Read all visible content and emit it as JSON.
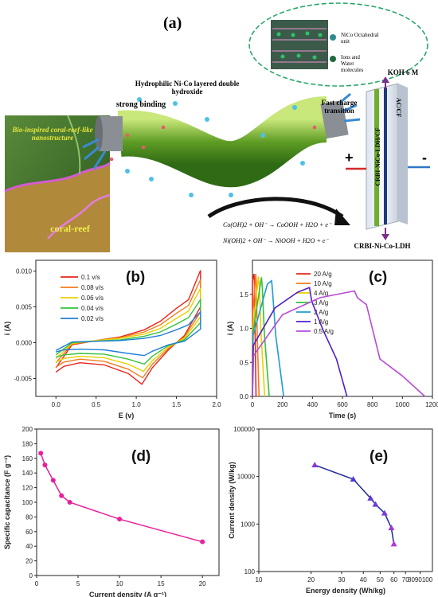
{
  "panel_a": {
    "label": "(a)",
    "inset_legend": [
      "NiCo Octahedral unit",
      "Ions and Water molecules"
    ],
    "hydrophilic_label": "Hydrophilic Ni-Co layered double hydroxide",
    "binding_label": "strong binding",
    "fast_charge_label": "Fast charge transition",
    "coral_title": "Bio-inspired coral-reef-like nanostructure",
    "coral_label": "coral-reef",
    "electrolyte": "KOH 6 M",
    "electrode_pos": "CRBI-NiCo-LDH/CF",
    "electrode_neg": "AC/CF",
    "plus": "+",
    "minus": "-",
    "bottom_label": "CRBI-Ni-Co-LDH",
    "reaction1": "Co(OH)2 + OH⁻ → CoOOH + H2O + e⁻",
    "reaction2": "Ni(OH)2 + OH⁻ → NiOOH + H2O + e⁻",
    "colors": {
      "green": "#6fae2e",
      "dash": "#2aa86a",
      "blue": "#2f78c4",
      "red": "#d42a2a"
    }
  },
  "chart_data": [
    {
      "panel": "(b)",
      "type": "line",
      "xlabel": "E (v)",
      "ylabel": "i (A)",
      "xlim": [
        -0.25,
        2.0
      ],
      "ylim": [
        -0.0075,
        0.0115
      ],
      "xticks": [
        "0.0",
        "0.5",
        "1.0",
        "1.5",
        "2.0"
      ],
      "yticks": [
        "0.010",
        "0.005",
        "0.000",
        "-0.005"
      ],
      "legend_position": "top-left",
      "series": [
        {
          "name": "0.1 v/s",
          "color": "#e8261c",
          "anodic": [
            [
              0,
              -0.0035
            ],
            [
              0.2,
              -0.0003
            ],
            [
              0.5,
              0.0003
            ],
            [
              0.8,
              0.0008
            ],
            [
              1.1,
              0.0018
            ],
            [
              1.3,
              0.003
            ],
            [
              1.5,
              0.0048
            ],
            [
              1.65,
              0.006
            ],
            [
              1.8,
              0.0101
            ]
          ],
          "cathodic": [
            [
              1.8,
              0.005
            ],
            [
              1.6,
              0.001
            ],
            [
              1.4,
              -0.001
            ],
            [
              1.2,
              -0.0035
            ],
            [
              1.07,
              -0.0058
            ],
            [
              0.9,
              -0.0043
            ],
            [
              0.6,
              -0.0031
            ],
            [
              0.3,
              -0.0028
            ],
            [
              0.1,
              -0.0033
            ],
            [
              0,
              -0.0041
            ]
          ]
        },
        {
          "name": "0.08 v/s",
          "color": "#f07c1e",
          "anodic": [
            [
              0,
              -0.0028
            ],
            [
              0.2,
              -0.0002
            ],
            [
              0.5,
              0.0003
            ],
            [
              0.8,
              0.0007
            ],
            [
              1.1,
              0.0015
            ],
            [
              1.3,
              0.0025
            ],
            [
              1.5,
              0.0041
            ],
            [
              1.65,
              0.0052
            ],
            [
              1.8,
              0.0088
            ]
          ],
          "cathodic": [
            [
              1.8,
              0.0043
            ],
            [
              1.6,
              0.0008
            ],
            [
              1.4,
              -0.0008
            ],
            [
              1.2,
              -0.003
            ],
            [
              1.08,
              -0.0049
            ],
            [
              0.9,
              -0.0037
            ],
            [
              0.6,
              -0.0026
            ],
            [
              0.3,
              -0.0023
            ],
            [
              0.1,
              -0.0027
            ],
            [
              0,
              -0.0034
            ]
          ]
        },
        {
          "name": "0.06 v/s",
          "color": "#e8d000",
          "anodic": [
            [
              0,
              -0.0022
            ],
            [
              0.2,
              -0.0001
            ],
            [
              0.5,
              0.0003
            ],
            [
              0.8,
              0.0006
            ],
            [
              1.1,
              0.0012
            ],
            [
              1.3,
              0.002
            ],
            [
              1.5,
              0.0034
            ],
            [
              1.65,
              0.0044
            ],
            [
              1.8,
              0.0076
            ]
          ],
          "cathodic": [
            [
              1.8,
              0.0036
            ],
            [
              1.6,
              0.0006
            ],
            [
              1.4,
              -0.0006
            ],
            [
              1.2,
              -0.0025
            ],
            [
              1.09,
              -0.004
            ],
            [
              0.9,
              -0.003
            ],
            [
              0.6,
              -0.0021
            ],
            [
              0.3,
              -0.0019
            ],
            [
              0.1,
              -0.0022
            ],
            [
              0,
              -0.0027
            ]
          ]
        },
        {
          "name": "0.04 v/s",
          "color": "#33c23a",
          "anodic": [
            [
              0,
              -0.0017
            ],
            [
              0.2,
              0.0
            ],
            [
              0.5,
              0.0002
            ],
            [
              0.8,
              0.0004
            ],
            [
              1.1,
              0.0009
            ],
            [
              1.3,
              0.0015
            ],
            [
              1.5,
              0.0026
            ],
            [
              1.65,
              0.0035
            ],
            [
              1.8,
              0.006
            ]
          ],
          "cathodic": [
            [
              1.8,
              0.0028
            ],
            [
              1.6,
              0.0004
            ],
            [
              1.4,
              -0.0004
            ],
            [
              1.2,
              -0.0019
            ],
            [
              1.1,
              -0.003
            ],
            [
              0.9,
              -0.0023
            ],
            [
              0.6,
              -0.0016
            ],
            [
              0.3,
              -0.0015
            ],
            [
              0.1,
              -0.0017
            ],
            [
              0,
              -0.002
            ]
          ]
        },
        {
          "name": "0.02 v/s",
          "color": "#1f7fd6",
          "anodic": [
            [
              0,
              -0.0011
            ],
            [
              0.2,
              0.0001
            ],
            [
              0.5,
              0.0002
            ],
            [
              0.8,
              0.0003
            ],
            [
              1.1,
              0.0006
            ],
            [
              1.3,
              0.001
            ],
            [
              1.5,
              0.0018
            ],
            [
              1.65,
              0.0025
            ],
            [
              1.8,
              0.0043
            ]
          ],
          "cathodic": [
            [
              1.8,
              0.0019
            ],
            [
              1.6,
              0.0002
            ],
            [
              1.4,
              -0.0003
            ],
            [
              1.2,
              -0.0012
            ],
            [
              1.1,
              -0.0018
            ],
            [
              0.9,
              -0.0015
            ],
            [
              0.6,
              -0.001
            ],
            [
              0.3,
              -0.0009
            ],
            [
              0.1,
              -0.001
            ],
            [
              0,
              -0.0013
            ]
          ]
        }
      ]
    },
    {
      "panel": "(c)",
      "type": "line",
      "xlabel": "Time (s)",
      "ylabel": "i (A)",
      "xlim": [
        0,
        1200
      ],
      "ylim": [
        0,
        2.0
      ],
      "xticks": [
        "0",
        "200",
        "400",
        "600",
        "800",
        "1000",
        "1200"
      ],
      "yticks": [
        "1.5",
        "1.0",
        "0.5",
        "0.0"
      ],
      "legend_position": "top-right",
      "series": [
        {
          "name": "20  A/g",
          "color": "#e8261c",
          "points": [
            [
              0,
              0
            ],
            [
              0,
              1.7
            ],
            [
              10,
              1.8
            ],
            [
              14,
              1.65
            ],
            [
              18,
              0.9
            ],
            [
              24,
              0
            ]
          ]
        },
        {
          "name": "10  A/g",
          "color": "#f07c1e",
          "points": [
            [
              0,
              0
            ],
            [
              2,
              1.2
            ],
            [
              22,
              1.8
            ],
            [
              26,
              1.65
            ],
            [
              32,
              0.9
            ],
            [
              44,
              0
            ]
          ]
        },
        {
          "name": "4    A/g",
          "color": "#e8d000",
          "points": [
            [
              0,
              0
            ],
            [
              3,
              1.0
            ],
            [
              40,
              1.76
            ],
            [
              46,
              1.62
            ],
            [
              58,
              0.9
            ],
            [
              82,
              0
            ]
          ]
        },
        {
          "name": "3    A/g",
          "color": "#33c23a",
          "points": [
            [
              0,
              0
            ],
            [
              4,
              0.95
            ],
            [
              60,
              1.75
            ],
            [
              66,
              1.6
            ],
            [
              80,
              0.9
            ],
            [
              112,
              0
            ]
          ]
        },
        {
          "name": "2    A/g",
          "color": "#1f9bd6",
          "points": [
            [
              0,
              0
            ],
            [
              5,
              0.9
            ],
            [
              100,
              1.65
            ],
            [
              128,
              1.7
            ],
            [
              134,
              1.55
            ],
            [
              155,
              0.9
            ],
            [
              208,
              0
            ]
          ]
        },
        {
          "name": "1    A/g",
          "color": "#5020c8",
          "points": [
            [
              0,
              0
            ],
            [
              6,
              0.75
            ],
            [
              150,
              1.3
            ],
            [
              300,
              1.53
            ],
            [
              380,
              1.6
            ],
            [
              395,
              1.4
            ],
            [
              470,
              0.98
            ],
            [
              560,
              0.55
            ],
            [
              630,
              0
            ]
          ]
        },
        {
          "name": "0.5 A/g",
          "color": "#b84bd6",
          "points": [
            [
              0,
              0
            ],
            [
              8,
              0.6
            ],
            [
              200,
              1.2
            ],
            [
              450,
              1.45
            ],
            [
              680,
              1.55
            ],
            [
              700,
              1.45
            ],
            [
              760,
              1.35
            ],
            [
              850,
              0.55
            ],
            [
              1000,
              0.3
            ],
            [
              1150,
              0
            ]
          ]
        }
      ]
    },
    {
      "panel": "(d)",
      "type": "line",
      "xlabel": "Current density (A g⁻¹)",
      "ylabel": "Specific capacitance (F g⁻¹)",
      "xlim": [
        0,
        22
      ],
      "ylim": [
        0,
        200
      ],
      "xticks": [
        "0",
        "5",
        "10",
        "15",
        "20"
      ],
      "yticks": [
        "200",
        "180",
        "160",
        "140",
        "120",
        "100",
        "80",
        "60",
        "40",
        "20",
        "0"
      ],
      "series": [
        {
          "name": "",
          "color": "#e8209a",
          "x": [
            0.5,
            1,
            2,
            3,
            4,
            10,
            20
          ],
          "values": [
            167,
            151,
            130,
            109,
            100,
            77,
            46
          ]
        }
      ]
    },
    {
      "panel": "(e)",
      "type": "line",
      "xlabel": "Energy density (Wh/kg)",
      "ylabel": "Current density (W/kg)",
      "x_scale": "log",
      "y_scale": "log",
      "xlim": [
        10,
        100
      ],
      "ylim": [
        100,
        100000
      ],
      "xticks": [
        "10",
        "20",
        "30",
        "40",
        "50",
        "60",
        "70",
        "8090100"
      ],
      "yticks": [
        "100000",
        "10000",
        "1000",
        "100"
      ],
      "series": [
        {
          "name": "",
          "color": "#1b2a9c",
          "marker_colors": [
            "#8a3ad6",
            "#4a3ad6",
            "#5f3ad6",
            "#6f3ad6",
            "#7f3ad6",
            "#9a3ad6",
            "#b03ad6"
          ],
          "x": [
            21,
            35,
            44,
            47,
            53,
            58,
            60
          ],
          "values": [
            17500,
            8800,
            3500,
            2600,
            1700,
            830,
            380
          ]
        }
      ]
    }
  ]
}
